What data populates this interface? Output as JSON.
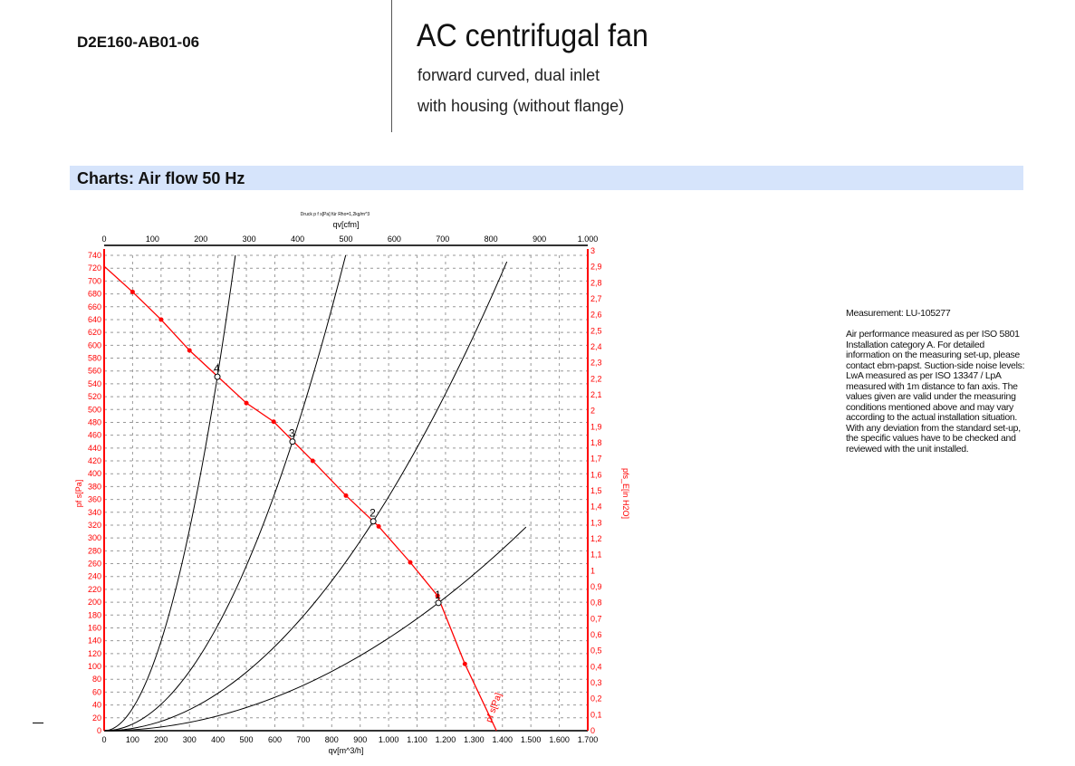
{
  "header": {
    "model": "D2E160-AB01-06",
    "title": "AC centrifugal fan",
    "subtitle1": "forward curved, dual inlet",
    "subtitle2": "with housing (without flange)"
  },
  "section": {
    "title": "Charts: Air flow 50 Hz"
  },
  "notes": {
    "measurement": "Measurement: LU-105277",
    "text": "Air performance measured as per ISO 5801 Installation category A. For detailed information on the measuring set-up, please contact ebm-papst. Suction-side noise levels: LwA measured as per ISO 13347 / LpA measured with 1m distance to fan axis. The values given are valid under the measuring conditions mentioned above and may vary according to the actual installation situation. With any deviation from the standard set-up, the specific values have to be checked and reviewed with the unit installed."
  },
  "chart_data": {
    "type": "line",
    "title": "Druck p f s[Pa] für Rho=1,2kg/m^3",
    "xlabel": "qv[m^3/h]",
    "x2label": "qv[cfm]",
    "ylabel": "pf s[Pa]",
    "y2label": "pfs_E[in H2O]",
    "xlim": [
      0,
      1700
    ],
    "x2lim": [
      0,
      1000
    ],
    "ylim": [
      0,
      740
    ],
    "y2lim": [
      0,
      3
    ],
    "xticks": [
      "0",
      "100",
      "200",
      "300",
      "400",
      "500",
      "600",
      "700",
      "800",
      "900",
      "1.000",
      "1.100",
      "1.200",
      "1.300",
      "1.400",
      "1.500",
      "1.600",
      "1.700"
    ],
    "x2ticks": [
      "0",
      "100",
      "200",
      "300",
      "400",
      "500",
      "600",
      "700",
      "800",
      "900",
      "1.000"
    ],
    "y2ticks": [
      "0",
      "0,1",
      "0,2",
      "0,3",
      "0,4",
      "0,5",
      "0,6",
      "0,7",
      "0,8",
      "0,9",
      "1",
      "1,1",
      "1,2",
      "1,3",
      "1,4",
      "1,5",
      "1,6",
      "1,7",
      "1,8",
      "1,9",
      "2",
      "2,1",
      "2,2",
      "2,3",
      "2,4",
      "2,5",
      "2,6",
      "2,7",
      "2,8",
      "2,9",
      "3"
    ],
    "grid": true,
    "fan_curve": {
      "name": "pf s[Pa]",
      "color": "#ff0000",
      "x": [
        0,
        100,
        200,
        300,
        400,
        500,
        596,
        733,
        850,
        965,
        1076,
        1172,
        1268,
        1379
      ],
      "y": [
        723,
        683,
        640,
        592,
        551,
        510,
        481,
        420,
        366,
        318,
        262,
        210,
        104,
        0
      ]
    },
    "operating_points": [
      {
        "label": "1",
        "x": 1175,
        "y": 199
      },
      {
        "label": "2",
        "x": 946,
        "y": 326
      },
      {
        "label": "3",
        "x": 662,
        "y": 450
      },
      {
        "label": "4",
        "x": 398,
        "y": 551
      }
    ],
    "system_curves": [
      {
        "point": "1",
        "ymax": 317
      },
      {
        "point": "2",
        "ymax": 730
      },
      {
        "point": "3",
        "ymax": 740
      },
      {
        "point": "4",
        "ymax": 740
      }
    ]
  }
}
